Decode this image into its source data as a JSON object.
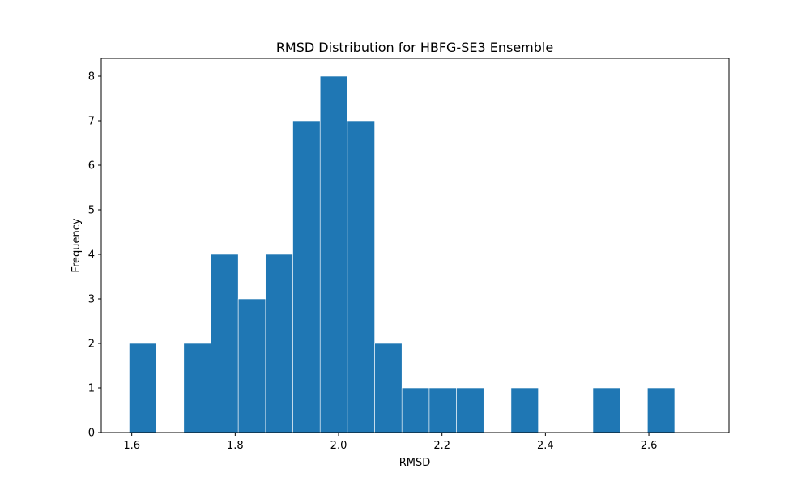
{
  "chart_data": {
    "type": "bar",
    "subtype": "histogram",
    "title": "RMSD Distribution for HBFG-SE3 Ensemble",
    "xlabel": "RMSD",
    "ylabel": "Frequency",
    "xlim": [
      1.541,
      2.755
    ],
    "ylim": [
      0,
      8.4
    ],
    "bin_edges": [
      1.595,
      1.6478,
      1.7005,
      1.7533,
      1.806,
      1.8588,
      1.9115,
      1.9643,
      2.017,
      2.0698,
      2.1225,
      2.1753,
      2.228,
      2.2808,
      2.3335,
      2.3863,
      2.439,
      2.4918,
      2.5445,
      2.5973,
      2.65,
      2.7028
    ],
    "values": [
      2,
      0,
      2,
      4,
      3,
      4,
      7,
      8,
      7,
      2,
      1,
      1,
      1,
      0,
      1,
      0,
      0,
      1,
      0,
      1,
      0
    ],
    "x_ticks": [
      1.6,
      1.8,
      2.0,
      2.2,
      2.4,
      2.6
    ],
    "x_tick_labels": [
      "1.6",
      "1.8",
      "2.0",
      "2.2",
      "2.4",
      "2.6"
    ],
    "y_ticks": [
      0,
      1,
      2,
      3,
      4,
      5,
      6,
      7,
      8
    ],
    "y_tick_labels": [
      "0",
      "1",
      "2",
      "3",
      "4",
      "5",
      "6",
      "7",
      "8"
    ],
    "bar_color": "#1f77b4",
    "edge_color": "#ffffff",
    "grid": false,
    "legend": false
  }
}
